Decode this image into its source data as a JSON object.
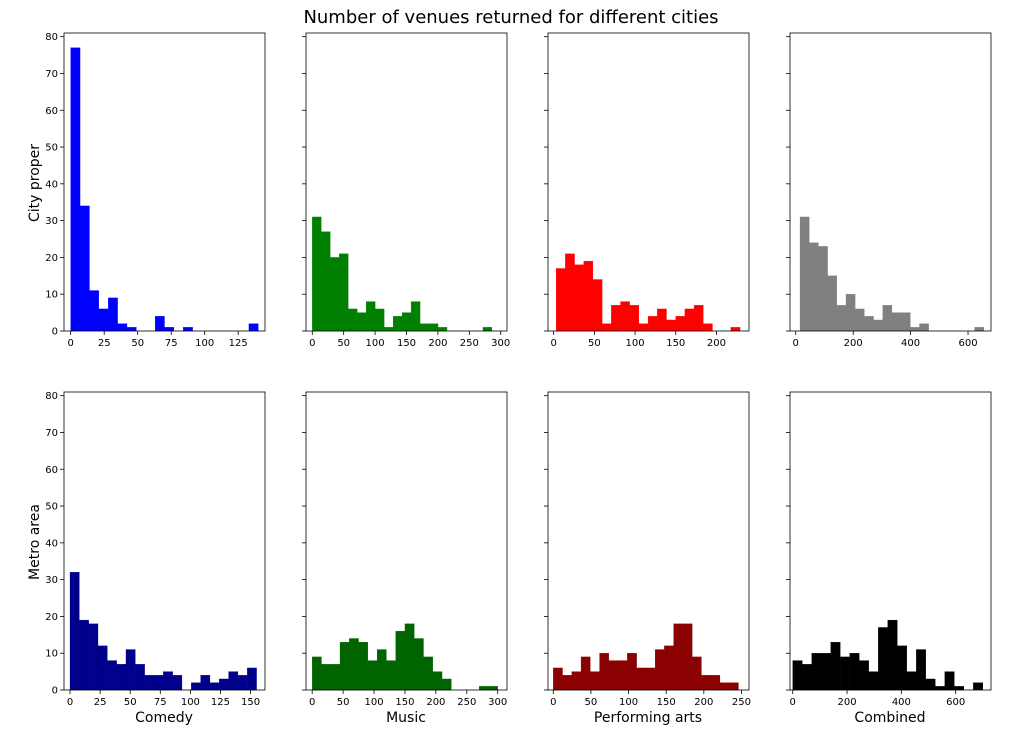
{
  "chart_data": {
    "type": "bar",
    "title": "Number of venues returned for different cities",
    "row_labels": [
      "City proper",
      "Metro area"
    ],
    "column_labels": [
      "Comedy",
      "Music",
      "Performing arts",
      "Combined"
    ],
    "ylim": [
      0,
      81
    ],
    "yticks": [
      0,
      10,
      20,
      30,
      40,
      50,
      60,
      70,
      80
    ],
    "grid": false,
    "panels": [
      {
        "row": "City proper",
        "column": "Comedy",
        "color": "#0000ff",
        "xlim": [
          -5,
          145
        ],
        "xticks": [
          0,
          25,
          50,
          75,
          100,
          125
        ],
        "bin_start": 0,
        "bin_width": 7,
        "counts": [
          77,
          34,
          11,
          6,
          9,
          2,
          1,
          0,
          0,
          4,
          1,
          0,
          1,
          0,
          0,
          0,
          0,
          0,
          0,
          2
        ]
      },
      {
        "row": "City proper",
        "column": "Music",
        "color": "#008000",
        "xlim": [
          -10,
          310
        ],
        "xticks": [
          0,
          50,
          100,
          150,
          200,
          250,
          300
        ],
        "bin_start": 0,
        "bin_width": 14.3,
        "counts": [
          31,
          27,
          20,
          21,
          6,
          5,
          8,
          6,
          1,
          4,
          5,
          8,
          2,
          2,
          1,
          0,
          0,
          0,
          0,
          1
        ]
      },
      {
        "row": "City proper",
        "column": "Performing arts",
        "color": "#ff0000",
        "xlim": [
          -7,
          240
        ],
        "xticks": [
          0,
          50,
          100,
          150,
          200
        ],
        "bin_start": 3,
        "bin_width": 11.3,
        "counts": [
          17,
          21,
          18,
          19,
          14,
          2,
          7,
          8,
          7,
          2,
          4,
          6,
          3,
          4,
          6,
          7,
          2,
          0,
          0,
          1
        ]
      },
      {
        "row": "City proper",
        "column": "Combined",
        "color": "#808080",
        "xlim": [
          -20,
          680
        ],
        "xticks": [
          0,
          200,
          400,
          600
        ],
        "bin_start": 15,
        "bin_width": 32,
        "counts": [
          31,
          24,
          23,
          15,
          7,
          10,
          6,
          4,
          3,
          7,
          5,
          5,
          1,
          2,
          0,
          0,
          0,
          0,
          0,
          1
        ]
      },
      {
        "row": "Metro area",
        "column": "Comedy",
        "color": "#00008b",
        "xlim": [
          -5,
          162
        ],
        "xticks": [
          0,
          25,
          50,
          75,
          100,
          125,
          150
        ],
        "bin_start": 0,
        "bin_width": 7.75,
        "counts": [
          32,
          19,
          18,
          12,
          8,
          7,
          11,
          7,
          4,
          4,
          5,
          4,
          0,
          2,
          4,
          2,
          3,
          5,
          4,
          6
        ]
      },
      {
        "row": "Metro area",
        "column": "Music",
        "color": "#006400",
        "xlim": [
          -10,
          315
        ],
        "xticks": [
          0,
          50,
          100,
          150,
          200,
          250,
          300
        ],
        "bin_start": 0,
        "bin_width": 15,
        "counts": [
          9,
          7,
          7,
          13,
          14,
          13,
          8,
          11,
          8,
          16,
          18,
          14,
          9,
          5,
          3,
          0,
          0,
          0,
          1,
          1
        ]
      },
      {
        "row": "Metro area",
        "column": "Performing arts",
        "color": "#8b0000",
        "xlim": [
          -7,
          260
        ],
        "xticks": [
          0,
          50,
          100,
          150,
          200,
          250
        ],
        "bin_start": 0,
        "bin_width": 12.3,
        "counts": [
          6,
          4,
          5,
          9,
          5,
          10,
          8,
          8,
          10,
          6,
          6,
          11,
          12,
          18,
          18,
          9,
          4,
          4,
          2,
          2
        ]
      },
      {
        "row": "Metro area",
        "column": "Combined",
        "color": "#000000",
        "xlim": [
          -10,
          730
        ],
        "xticks": [
          0,
          200,
          400,
          600
        ],
        "bin_start": 0,
        "bin_width": 35,
        "counts": [
          8,
          7,
          10,
          10,
          13,
          9,
          10,
          8,
          5,
          17,
          19,
          12,
          5,
          11,
          3,
          1,
          5,
          1,
          0,
          2
        ]
      }
    ]
  }
}
